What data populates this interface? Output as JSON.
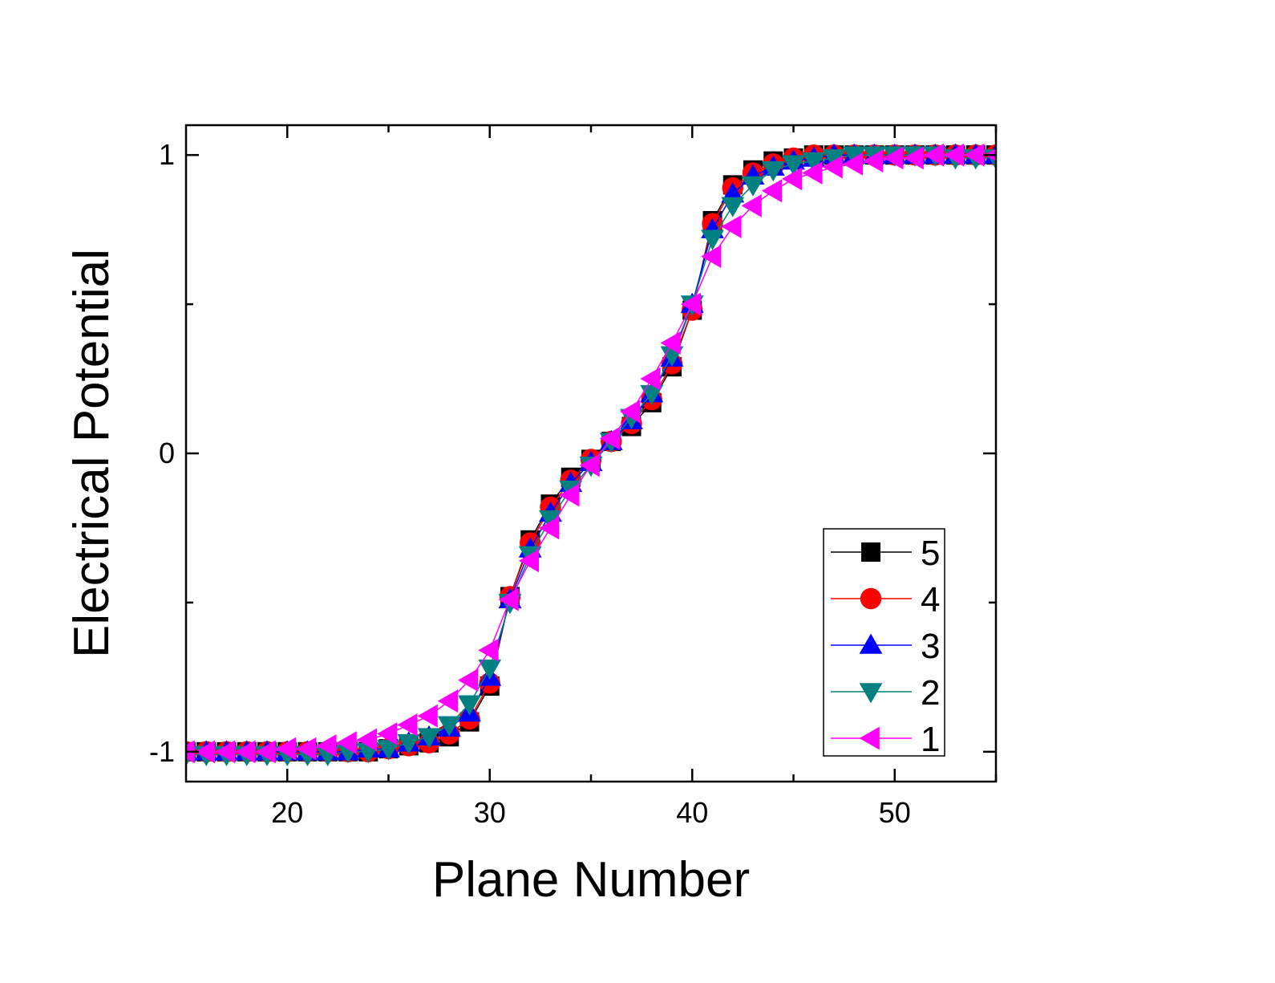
{
  "chart_data": {
    "type": "line",
    "xlabel": "Plane Number",
    "ylabel": "Electrical Potential",
    "xlim": [
      15,
      55
    ],
    "ylim": [
      -1.1,
      1.1
    ],
    "xticks": [
      20,
      30,
      40,
      50
    ],
    "xtick_labels": [
      "20",
      "30",
      "40",
      "50"
    ],
    "yticks": [
      -1,
      0,
      1
    ],
    "ytick_labels": [
      "-1",
      "0",
      "1"
    ],
    "grid": false,
    "legend_position": "bottom-right",
    "x": [
      15,
      16,
      17,
      18,
      19,
      20,
      21,
      22,
      23,
      24,
      25,
      26,
      27,
      28,
      29,
      30,
      31,
      32,
      33,
      34,
      35,
      36,
      37,
      38,
      39,
      40,
      41,
      42,
      43,
      44,
      45,
      46,
      47,
      48,
      49,
      50,
      51,
      52,
      53,
      54,
      55
    ],
    "series": [
      {
        "name": "5",
        "color": "#000000",
        "marker": "square",
        "values": [
          -1,
          -1,
          -1,
          -1,
          -1,
          -1,
          -1,
          -1,
          -1,
          -1,
          -0.99,
          -0.98,
          -0.97,
          -0.95,
          -0.9,
          -0.78,
          -0.48,
          -0.29,
          -0.17,
          -0.08,
          -0.02,
          0.04,
          0.09,
          0.17,
          0.29,
          0.48,
          0.78,
          0.9,
          0.95,
          0.98,
          0.99,
          1,
          1,
          1,
          1,
          1,
          1,
          1,
          1,
          1,
          1
        ]
      },
      {
        "name": "4",
        "color": "#ff0000",
        "marker": "circle",
        "values": [
          -1,
          -1,
          -1,
          -1,
          -1,
          -1,
          -1,
          -1,
          -1,
          -1,
          -0.99,
          -0.98,
          -0.97,
          -0.94,
          -0.89,
          -0.77,
          -0.48,
          -0.3,
          -0.18,
          -0.09,
          -0.02,
          0.04,
          0.1,
          0.18,
          0.3,
          0.48,
          0.77,
          0.89,
          0.94,
          0.97,
          0.99,
          1,
          1,
          1,
          1,
          1,
          1,
          1,
          1,
          1,
          1
        ]
      },
      {
        "name": "3",
        "color": "#0000ff",
        "marker": "triangle-up",
        "values": [
          -1,
          -1,
          -1,
          -1,
          -1,
          -1,
          -1,
          -1,
          -1,
          -0.99,
          -0.99,
          -0.97,
          -0.95,
          -0.92,
          -0.87,
          -0.75,
          -0.49,
          -0.32,
          -0.2,
          -0.1,
          -0.03,
          0.04,
          0.11,
          0.2,
          0.32,
          0.5,
          0.75,
          0.87,
          0.93,
          0.96,
          0.98,
          0.99,
          1,
          1,
          1,
          1,
          1,
          1,
          1,
          1,
          1
        ]
      },
      {
        "name": "2",
        "color": "#008080",
        "marker": "triangle-down",
        "values": [
          -1.01,
          -1.01,
          -1.01,
          -1.01,
          -1.01,
          -1.01,
          -1.01,
          -1.01,
          -1,
          -1,
          -0.99,
          -0.97,
          -0.95,
          -0.91,
          -0.84,
          -0.72,
          -0.5,
          -0.34,
          -0.22,
          -0.12,
          -0.04,
          0.04,
          0.12,
          0.2,
          0.33,
          0.5,
          0.72,
          0.83,
          0.9,
          0.95,
          0.97,
          0.98,
          0.99,
          1,
          1,
          1,
          1,
          1,
          0.99,
          0.99,
          0.99
        ]
      },
      {
        "name": "1",
        "color": "#ff00ff",
        "marker": "triangle-left",
        "values": [
          -1,
          -1,
          -1,
          -1,
          -1,
          -0.99,
          -0.99,
          -0.98,
          -0.97,
          -0.96,
          -0.94,
          -0.91,
          -0.88,
          -0.83,
          -0.76,
          -0.66,
          -0.49,
          -0.36,
          -0.25,
          -0.14,
          -0.04,
          0.05,
          0.14,
          0.25,
          0.37,
          0.5,
          0.66,
          0.76,
          0.83,
          0.88,
          0.92,
          0.94,
          0.96,
          0.97,
          0.98,
          0.99,
          0.99,
          1,
          1,
          1,
          1
        ]
      }
    ]
  }
}
